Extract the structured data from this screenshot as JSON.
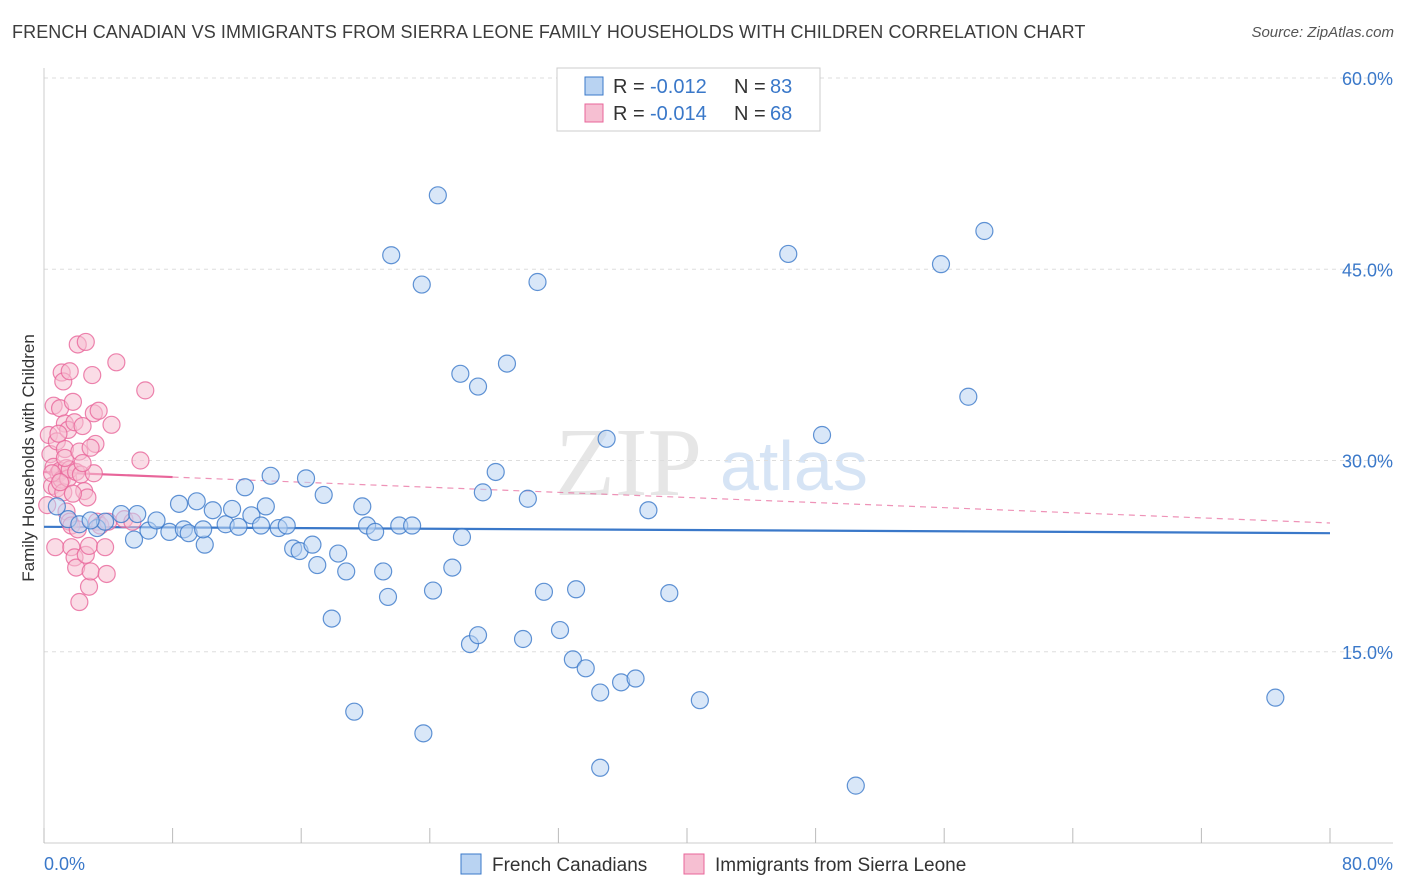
{
  "title": "FRENCH CANADIAN VS IMMIGRANTS FROM SIERRA LEONE FAMILY HOUSEHOLDS WITH CHILDREN CORRELATION CHART",
  "source": "Source: ZipAtlas.com",
  "watermark": {
    "zip": "ZIP",
    "atlas": "atlas"
  },
  "colors": {
    "blue": "#3a78c9",
    "blue_fill": "#b9d3f2",
    "pink": "#e8659a",
    "pink_fill": "#f6bfd2",
    "grid": "#dddddd"
  },
  "chart_data": {
    "type": "scatter",
    "title": "FRENCH CANADIAN VS IMMIGRANTS FROM SIERRA LEONE FAMILY HOUSEHOLDS WITH CHILDREN CORRELATION CHART",
    "xlabel": "",
    "ylabel": "Family Households with Children",
    "xlim": [
      0,
      80
    ],
    "ylim": [
      0,
      60
    ],
    "x_tick_labels": [
      "0.0%",
      "80.0%"
    ],
    "y_ticks": [
      15,
      30,
      45,
      60
    ],
    "y_tick_labels": [
      "15.0%",
      "30.0%",
      "45.0%",
      "60.0%"
    ],
    "legend": [
      {
        "name": "French Canadians",
        "r_label": "R =",
        "r": "-0.012",
        "n_label": "N =",
        "n": "83"
      },
      {
        "name": "Immigrants from Sierra Leone",
        "r_label": "R =",
        "r": "-0.014",
        "n_label": "N =",
        "n": "68"
      }
    ],
    "series": [
      {
        "name": "French Canadians",
        "trend": {
          "x": [
            0,
            80
          ],
          "y": [
            24.8,
            24.3
          ]
        },
        "points": [
          [
            0.8,
            26.4
          ],
          [
            1.5,
            25.4
          ],
          [
            2.2,
            25.0
          ],
          [
            3.3,
            24.7
          ],
          [
            3.8,
            25.2
          ],
          [
            4.8,
            25.8
          ],
          [
            5.6,
            23.8
          ],
          [
            5.8,
            25.8
          ],
          [
            6.5,
            24.5
          ],
          [
            7.0,
            25.3
          ],
          [
            7.8,
            24.4
          ],
          [
            8.4,
            26.6
          ],
          [
            8.7,
            24.6
          ],
          [
            9.0,
            24.3
          ],
          [
            9.5,
            26.8
          ],
          [
            10.0,
            23.4
          ],
          [
            10.5,
            26.1
          ],
          [
            11.3,
            25.0
          ],
          [
            11.7,
            26.2
          ],
          [
            12.1,
            24.8
          ],
          [
            12.5,
            27.9
          ],
          [
            12.9,
            25.7
          ],
          [
            13.5,
            24.9
          ],
          [
            13.8,
            26.4
          ],
          [
            14.1,
            28.8
          ],
          [
            14.6,
            24.7
          ],
          [
            15.1,
            24.9
          ],
          [
            15.5,
            23.1
          ],
          [
            15.9,
            22.9
          ],
          [
            16.3,
            28.6
          ],
          [
            16.7,
            23.4
          ],
          [
            17.0,
            21.8
          ],
          [
            17.4,
            27.3
          ],
          [
            17.9,
            17.6
          ],
          [
            18.3,
            22.7
          ],
          [
            18.8,
            21.3
          ],
          [
            19.3,
            10.3
          ],
          [
            19.8,
            26.4
          ],
          [
            20.1,
            24.9
          ],
          [
            20.6,
            24.4
          ],
          [
            21.1,
            21.3
          ],
          [
            21.4,
            19.3
          ],
          [
            21.6,
            46.1
          ],
          [
            22.1,
            24.9
          ],
          [
            22.9,
            24.9
          ],
          [
            23.5,
            43.8
          ],
          [
            23.6,
            8.6
          ],
          [
            24.2,
            19.8
          ],
          [
            24.5,
            50.8
          ],
          [
            25.4,
            21.6
          ],
          [
            25.9,
            36.8
          ],
          [
            26.5,
            15.6
          ],
          [
            27.0,
            16.3
          ],
          [
            27.0,
            35.8
          ],
          [
            27.3,
            27.5
          ],
          [
            28.1,
            29.1
          ],
          [
            28.8,
            37.6
          ],
          [
            29.8,
            16.0
          ],
          [
            30.1,
            27.0
          ],
          [
            30.7,
            44.0
          ],
          [
            31.1,
            19.7
          ],
          [
            32.1,
            16.7
          ],
          [
            32.9,
            14.4
          ],
          [
            33.1,
            19.9
          ],
          [
            33.7,
            13.7
          ],
          [
            34.6,
            5.9
          ],
          [
            34.6,
            11.8
          ],
          [
            35.0,
            31.7
          ],
          [
            35.9,
            12.6
          ],
          [
            36.8,
            12.9
          ],
          [
            37.6,
            26.1
          ],
          [
            38.9,
            19.6
          ],
          [
            40.8,
            11.2
          ],
          [
            46.3,
            46.2
          ],
          [
            48.4,
            32.0
          ],
          [
            50.5,
            4.5
          ],
          [
            55.8,
            45.4
          ],
          [
            57.5,
            35.0
          ],
          [
            58.5,
            48.0
          ],
          [
            76.6,
            11.4
          ],
          [
            2.9,
            25.3
          ],
          [
            9.9,
            24.6
          ],
          [
            26.0,
            24.0
          ]
        ]
      },
      {
        "name": "Immigrants from Sierra Leone",
        "trend": {
          "x": [
            0,
            8
          ],
          "y": [
            29.1,
            28.7
          ],
          "dashed_to": {
            "x": 80,
            "y": 25.1
          }
        },
        "points": [
          [
            0.2,
            26.5
          ],
          [
            0.3,
            32.0
          ],
          [
            0.4,
            30.5
          ],
          [
            0.5,
            28.0
          ],
          [
            0.6,
            34.3
          ],
          [
            0.6,
            29.5
          ],
          [
            0.7,
            23.2
          ],
          [
            0.8,
            31.5
          ],
          [
            0.8,
            27.8
          ],
          [
            0.9,
            29.0
          ],
          [
            1.0,
            34.1
          ],
          [
            1.0,
            29.2
          ],
          [
            1.1,
            36.9
          ],
          [
            1.1,
            28.5
          ],
          [
            1.2,
            36.2
          ],
          [
            1.2,
            27.5
          ],
          [
            1.3,
            32.9
          ],
          [
            1.3,
            30.9
          ],
          [
            1.4,
            29.4
          ],
          [
            1.4,
            26.0
          ],
          [
            1.5,
            32.4
          ],
          [
            1.5,
            28.6
          ],
          [
            1.6,
            29.3
          ],
          [
            1.6,
            25.2
          ],
          [
            1.7,
            24.9
          ],
          [
            1.7,
            23.2
          ],
          [
            1.8,
            34.6
          ],
          [
            1.9,
            33.0
          ],
          [
            1.9,
            22.4
          ],
          [
            2.0,
            29.1
          ],
          [
            2.0,
            21.6
          ],
          [
            2.1,
            39.1
          ],
          [
            2.1,
            24.6
          ],
          [
            2.2,
            18.9
          ],
          [
            2.3,
            28.9
          ],
          [
            2.4,
            32.7
          ],
          [
            2.5,
            27.6
          ],
          [
            2.6,
            39.3
          ],
          [
            2.6,
            22.6
          ],
          [
            2.7,
            27.1
          ],
          [
            2.8,
            23.3
          ],
          [
            2.8,
            20.1
          ],
          [
            2.9,
            21.3
          ],
          [
            3.0,
            36.7
          ],
          [
            3.1,
            29.0
          ],
          [
            3.1,
            33.7
          ],
          [
            3.2,
            31.3
          ],
          [
            3.3,
            25.2
          ],
          [
            3.4,
            33.9
          ],
          [
            3.5,
            24.9
          ],
          [
            3.8,
            23.2
          ],
          [
            3.9,
            21.1
          ],
          [
            4.0,
            25.2
          ],
          [
            4.2,
            32.8
          ],
          [
            4.5,
            37.7
          ],
          [
            5.0,
            25.4
          ],
          [
            5.5,
            25.2
          ],
          [
            6.0,
            30.0
          ],
          [
            6.3,
            35.5
          ],
          [
            0.9,
            32.1
          ],
          [
            1.3,
            30.2
          ],
          [
            1.8,
            27.4
          ],
          [
            2.2,
            30.7
          ],
          [
            0.5,
            29.0
          ],
          [
            1.0,
            28.3
          ],
          [
            2.4,
            29.8
          ],
          [
            1.6,
            37.0
          ],
          [
            2.9,
            31.0
          ]
        ]
      }
    ]
  }
}
